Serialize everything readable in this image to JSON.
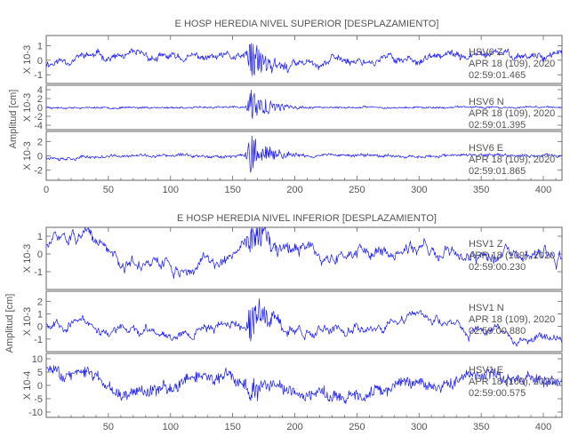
{
  "chart_data": [
    {
      "type": "line",
      "title": "E HOSP HEREDIA NIVEL SUPERIOR [DESPLAZAMIENTO]",
      "ylabel": "Amplitud [cm]",
      "xlim": [
        0,
        415
      ],
      "x_ticks": [
        "0",
        "50",
        "100",
        "150",
        "200",
        "250",
        "300",
        "350",
        "400"
      ],
      "show_first_x_tick": true,
      "series": [
        {
          "scale": "X 10-3",
          "ylim": [
            -1.6,
            1.7
          ],
          "y_ticks": [
            -1,
            0,
            1
          ],
          "station": "HSV6  Z",
          "date": "APR 18 (109), 2020",
          "time": "02:59:01.465",
          "seed": 11,
          "noise": 0.3,
          "drift": 0.25,
          "burst": 1.5,
          "envelope": [
            [
              0,
              -0.2
            ],
            [
              30,
              0.3
            ],
            [
              60,
              0.2
            ],
            [
              90,
              0.1
            ],
            [
              120,
              0.15
            ],
            [
              150,
              0.1
            ],
            [
              180,
              -0.1
            ],
            [
              210,
              -0.1
            ],
            [
              240,
              0
            ],
            [
              270,
              0.1
            ],
            [
              300,
              0.1
            ],
            [
              330,
              0.2
            ],
            [
              360,
              0.3
            ],
            [
              390,
              0.4
            ],
            [
              415,
              0.5
            ]
          ]
        },
        {
          "scale": "X 10-3",
          "ylim": [
            -5,
            5
          ],
          "y_ticks": [
            -4,
            -2,
            0,
            2,
            4
          ],
          "station": "HSV6  N",
          "date": "APR 18 (109), 2020",
          "time": "02:59:01.395",
          "seed": 23,
          "noise": 0.35,
          "drift": 0.1,
          "burst": 4.5,
          "envelope": [
            [
              0,
              0
            ],
            [
              100,
              0
            ],
            [
              200,
              0
            ],
            [
              300,
              0
            ],
            [
              415,
              0
            ]
          ]
        },
        {
          "scale": "X 10-3",
          "ylim": [
            -3.4,
            3.4
          ],
          "y_ticks": [
            -2,
            0,
            2
          ],
          "station": "HSV6  E",
          "date": "APR 18 (109), 2020",
          "time": "02:59:01.865",
          "seed": 37,
          "noise": 0.35,
          "drift": 0.15,
          "burst": 3,
          "envelope": [
            [
              0,
              -0.2
            ],
            [
              100,
              0
            ],
            [
              200,
              0.1
            ],
            [
              300,
              0
            ],
            [
              415,
              0
            ]
          ]
        }
      ]
    },
    {
      "type": "line",
      "title": "E HOSP HEREDIA NIVEL INFERIOR [DESPLAZAMIENTO]",
      "ylabel": "Amplitud [cm]",
      "xlim": [
        0,
        415
      ],
      "x_ticks": [
        "50",
        "100",
        "150",
        "200",
        "250",
        "300",
        "350",
        "400"
      ],
      "show_first_x_tick": false,
      "series": [
        {
          "scale": "X 10-3",
          "ylim": [
            -2,
            1.5
          ],
          "y_ticks": [
            -1,
            0,
            1
          ],
          "station": "HSV1  Z",
          "date": "APR 18 (109), 2020",
          "time": "02:59:00.230",
          "seed": 51,
          "noise": 0.25,
          "drift": 0.45,
          "burst": 1.2,
          "envelope": [
            [
              0,
              0.5
            ],
            [
              20,
              1
            ],
            [
              45,
              0.3
            ],
            [
              70,
              -0.5
            ],
            [
              100,
              -0.8
            ],
            [
              130,
              -0.6
            ],
            [
              160,
              0.2
            ],
            [
              190,
              0.4
            ],
            [
              230,
              0.1
            ],
            [
              270,
              0.2
            ],
            [
              300,
              0.3
            ],
            [
              330,
              0.1
            ],
            [
              370,
              -0.2
            ],
            [
              415,
              -0.5
            ]
          ]
        },
        {
          "scale": "X 10-3",
          "ylim": [
            -2,
            2.8
          ],
          "y_ticks": [
            -1,
            0,
            1,
            2
          ],
          "station": "HSV1  N",
          "date": "APR 18 (109), 2020",
          "time": "02:59:00.880",
          "seed": 67,
          "noise": 0.25,
          "drift": 0.45,
          "burst": 1.6,
          "envelope": [
            [
              0,
              0.3
            ],
            [
              25,
              0.6
            ],
            [
              50,
              -0.4
            ],
            [
              80,
              -0.6
            ],
            [
              120,
              -0.2
            ],
            [
              150,
              0.4
            ],
            [
              170,
              0.6
            ],
            [
              200,
              -0.2
            ],
            [
              240,
              0
            ],
            [
              280,
              0.6
            ],
            [
              300,
              0.8
            ],
            [
              330,
              -0.3
            ],
            [
              370,
              -0.5
            ],
            [
              400,
              -1
            ],
            [
              415,
              -0.9
            ]
          ]
        },
        {
          "scale": "X 10-4",
          "ylim": [
            -12,
            12
          ],
          "y_ticks": [
            -10,
            -5,
            0,
            5,
            10
          ],
          "station": "HSV1  E",
          "date": "APR 18 (109), 2020",
          "time": "02:59:00.575",
          "seed": 83,
          "noise": 3.5,
          "drift": 1.5,
          "burst": 5,
          "envelope": [
            [
              0,
              6
            ],
            [
              30,
              4
            ],
            [
              60,
              -2
            ],
            [
              100,
              -1
            ],
            [
              130,
              4
            ],
            [
              160,
              0
            ],
            [
              200,
              -2
            ],
            [
              240,
              -3
            ],
            [
              280,
              0
            ],
            [
              320,
              2
            ],
            [
              340,
              5
            ],
            [
              370,
              3
            ],
            [
              415,
              2
            ]
          ]
        }
      ]
    }
  ]
}
